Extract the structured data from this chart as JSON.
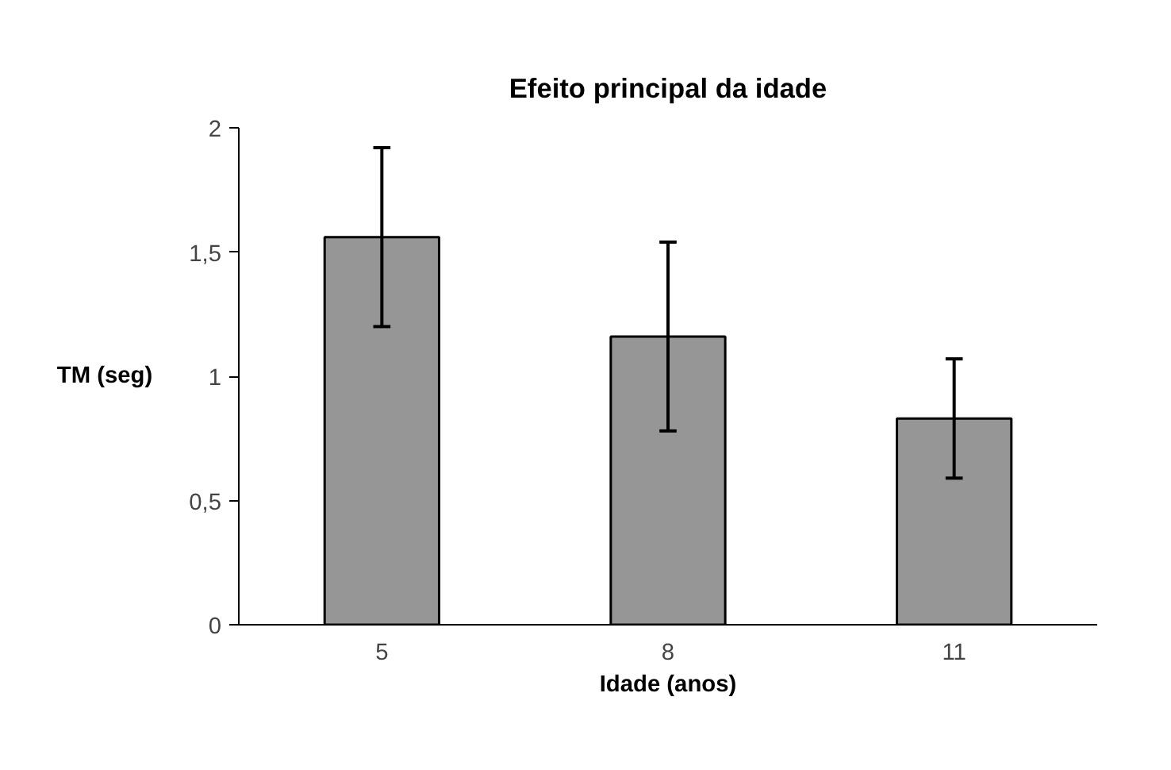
{
  "chart_data": {
    "type": "bar",
    "title": "Efeito principal da idade",
    "xlabel": "Idade (anos)",
    "ylabel": "TM (seg)",
    "categories": [
      "5",
      "8",
      "11"
    ],
    "values": [
      1.56,
      1.16,
      0.83
    ],
    "errors": [
      [
        1.2,
        1.92
      ],
      [
        0.78,
        1.54
      ],
      [
        0.59,
        1.07
      ]
    ],
    "color": "#969696",
    "ylim": [
      0,
      2
    ],
    "yticks": [
      0,
      {
        "value": 0.5,
        "label": "0,5"
      },
      1,
      {
        "value": 1.5,
        "label": "1,5"
      },
      2
    ],
    "grid": false
  }
}
